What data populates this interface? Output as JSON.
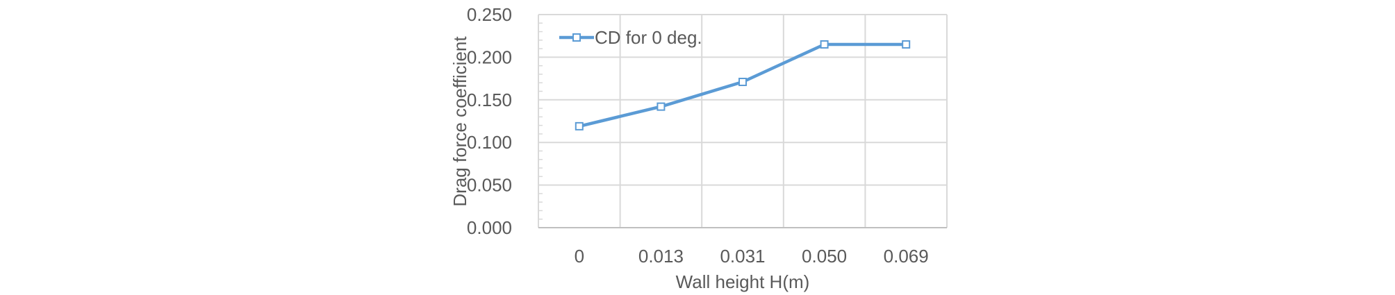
{
  "chart_data": {
    "type": "line",
    "categories": [
      "0",
      "0.013",
      "0.031",
      "0.050",
      "0.069"
    ],
    "series": [
      {
        "name": "CD for 0 deg.",
        "values": [
          0.119,
          0.142,
          0.171,
          0.215,
          0.215
        ],
        "color": "#5B9BD5",
        "marker": "square"
      }
    ],
    "y_ticks": [
      "0.000",
      "0.050",
      "0.100",
      "0.150",
      "0.200",
      "0.250"
    ],
    "ylim": [
      0,
      0.25
    ],
    "xlabel": "Wall height H(m)",
    "ylabel": "Drag force coefficient",
    "grid": true,
    "legend_position": "top-left"
  }
}
